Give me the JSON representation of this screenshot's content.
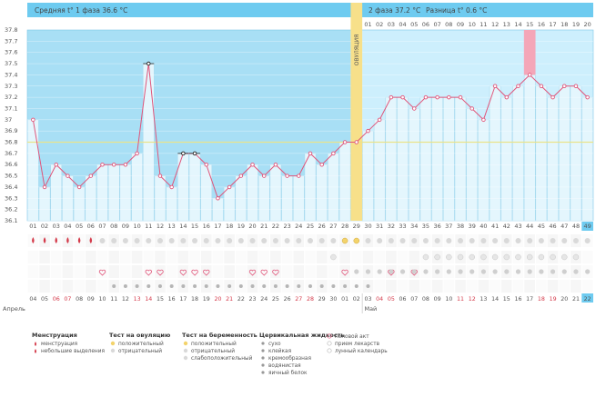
{
  "chart_data": {
    "type": "line",
    "header": {
      "phase1": "Средняя t° 1 фаза 36.6 °C",
      "phase2": "2 фаза 37.2 °C",
      "diff": "Разница t° 0.6 °C"
    },
    "ovulation_label": "ОВУЛЯЦИЯ",
    "ylim": [
      36.1,
      37.8
    ],
    "yticks": [
      "37.8",
      "37.7",
      "37.6",
      "37.5",
      "37.4",
      "37.3",
      "37.2",
      "37.1",
      "37",
      "36.9",
      "36.8",
      "36.7",
      "36.6",
      "36.5",
      "36.4",
      "36.3",
      "36.2",
      "36.1"
    ],
    "coverline": 36.8,
    "cycle_days": [
      "01",
      "02",
      "03",
      "04",
      "05",
      "06",
      "07",
      "08",
      "09",
      "10",
      "11",
      "12",
      "13",
      "14",
      "15",
      "16",
      "17",
      "18",
      "19",
      "20",
      "21",
      "22",
      "23",
      "24",
      "25",
      "26",
      "27",
      "28",
      "29",
      "30",
      "31",
      "32",
      "33",
      "34",
      "35",
      "36",
      "37",
      "38",
      "39",
      "40",
      "41",
      "42",
      "43",
      "44",
      "45",
      "46",
      "47",
      "48",
      "49"
    ],
    "top_days": [
      "01",
      "02",
      "03",
      "04",
      "05",
      "06",
      "07",
      "08",
      "09",
      "10",
      "11",
      "12",
      "13",
      "14",
      "15",
      "16",
      "17",
      "18",
      "19",
      "20"
    ],
    "values": [
      37.0,
      36.4,
      36.6,
      36.5,
      36.4,
      36.5,
      36.6,
      36.6,
      36.6,
      36.7,
      37.5,
      36.5,
      36.4,
      36.7,
      36.7,
      36.6,
      36.3,
      36.4,
      36.5,
      36.6,
      36.5,
      36.6,
      36.5,
      36.5,
      36.7,
      36.6,
      36.7,
      36.8,
      36.8,
      36.9,
      37.0,
      37.2,
      37.2,
      37.1,
      37.2,
      37.2,
      37.2,
      37.2,
      37.1,
      37.0,
      37.3,
      37.2,
      37.3,
      37.4,
      37.3,
      37.2,
      37.3,
      37.3,
      37.2
    ],
    "ovulation_index": 28,
    "highlight_index": 43,
    "marked_indices": [
      10,
      13,
      14
    ],
    "dates": [
      "04",
      "05",
      "06",
      "07",
      "08",
      "09",
      "10",
      "11",
      "12",
      "13",
      "14",
      "15",
      "16",
      "17",
      "18",
      "19",
      "20",
      "21",
      "22",
      "23",
      "24",
      "25",
      "26",
      "27",
      "28",
      "29",
      "30",
      "01",
      "02",
      "03",
      "04",
      "05",
      "06",
      "07",
      "08",
      "09",
      "10",
      "11",
      "12",
      "13",
      "14",
      "15",
      "16",
      "17",
      "18",
      "19",
      "20",
      "21",
      "22"
    ],
    "red_date_indices": [
      2,
      3,
      9,
      10,
      16,
      17,
      23,
      24,
      30,
      31,
      37,
      38,
      44,
      45
    ],
    "months": [
      "Апрель",
      "Май"
    ],
    "grid": true
  },
  "legend": {
    "menstruation": {
      "title": "Менструация",
      "items": [
        "менструация",
        "небольшие выделения"
      ]
    },
    "ovulation_test": {
      "title": "Тест на овуляцию",
      "items": [
        "положительный",
        "отрицательный"
      ]
    },
    "pregnancy_test": {
      "title": "Тест на беременность",
      "items": [
        "положительный",
        "отрицательный",
        "слабоположительный"
      ]
    },
    "cervical": {
      "title": "Цервикальная жидкость",
      "items": [
        "сухо",
        "клейкая",
        "кремообразная",
        "водянистая",
        "яичный белок"
      ]
    },
    "other": {
      "items": [
        "половой акт",
        "прием лекарств",
        "лунный календарь"
      ]
    }
  },
  "colors": {
    "phase1": "#a8dff5",
    "phase2": "#cdeffd",
    "header": "#6ecbf0",
    "line": "#e0557a",
    "ovulation": "#f7e08a",
    "highlight": "#f4a6b8"
  }
}
